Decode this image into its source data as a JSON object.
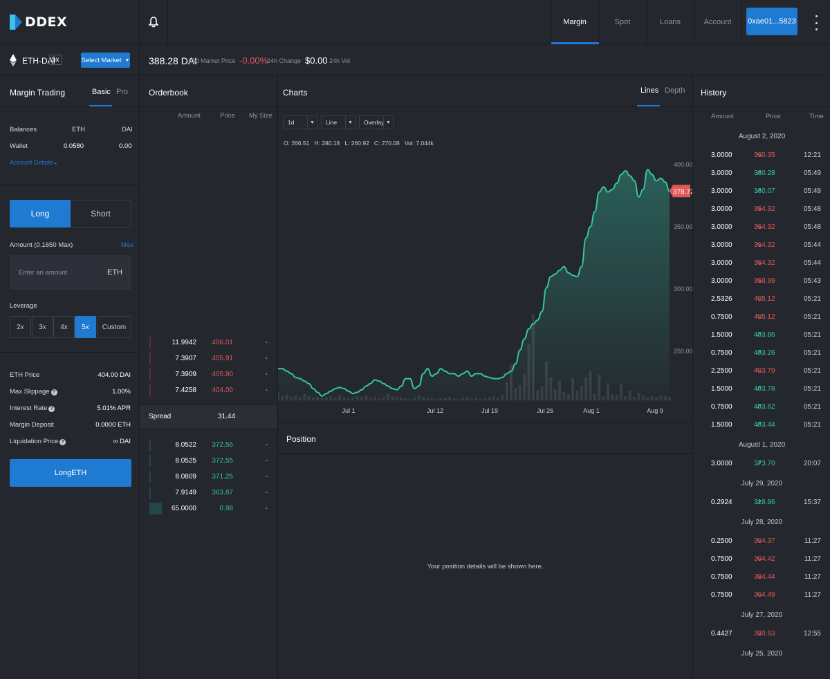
{
  "brand": {
    "name": "DDEX",
    "accent": "#1f7ad1"
  },
  "nav": {
    "tabs": [
      {
        "label": "Margin",
        "active": true
      },
      {
        "label": "Spot"
      },
      {
        "label": "Loans"
      },
      {
        "label": "Account"
      }
    ],
    "account_button": "0xae01...5823",
    "bell_icon": "bell-icon",
    "menu_icon": "kebab-menu-icon"
  },
  "market": {
    "pair": "ETH-DAI",
    "leverage_badge": "5x",
    "select_market_label": "Select Market",
    "price": "388.28 DAI",
    "price_label": "Mid Market Price",
    "change": "-0.00%",
    "change_label": "24h Change",
    "volume": "$0.00",
    "volume_label": "24h Vol"
  },
  "trade": {
    "title": "Margin Trading",
    "mode_tabs": [
      "Basic",
      "Pro"
    ],
    "balances_label": "Balances",
    "col_eth": "ETH",
    "col_dai": "DAI",
    "wallet_label": "Wallet",
    "wallet_eth": "0.0580",
    "wallet_dai": "0.00",
    "account_details": "Account Details",
    "side_long": "Long",
    "side_short": "Short",
    "amount_label": "Amount (0.1650 Max)",
    "max_label": "Max",
    "amount_placeholder": "Enter an amount",
    "amount_unit": "ETH",
    "leverage_label": "Leverage",
    "leverage_options": [
      "2x",
      "3x",
      "4x",
      "5x",
      "Custom"
    ],
    "leverage_selected": "5x",
    "stats": [
      {
        "label": "ETH Price",
        "value": "404.00 DAI",
        "help": false
      },
      {
        "label": "Max Slippage",
        "value": "1.00%",
        "help": true
      },
      {
        "label": "Interest Rate",
        "value": "5.01% APR",
        "help": true
      },
      {
        "label": "Margin Deposit",
        "value": "0.0000 ETH",
        "help": false
      },
      {
        "label": "Liquidation Price",
        "value": "∞ DAI",
        "help": true
      }
    ],
    "submit_label": "LongETH"
  },
  "orderbook": {
    "title": "Orderbook",
    "headers": [
      "Amount",
      "Price",
      "My Size"
    ],
    "asks": [
      {
        "amount": "11.9942",
        "price": "406.01",
        "my_size": "-"
      },
      {
        "amount": "7.3907",
        "price": "405.91",
        "my_size": "-"
      },
      {
        "amount": "7.3909",
        "price": "405.90",
        "my_size": "-"
      },
      {
        "amount": "7.4258",
        "price": "404.00",
        "my_size": "-"
      }
    ],
    "spread_label": "Spread",
    "spread_value": "31.44",
    "bids": [
      {
        "amount": "8.0522",
        "price": "372.56",
        "my_size": "-"
      },
      {
        "amount": "8.0525",
        "price": "372.55",
        "my_size": "-"
      },
      {
        "amount": "8.0809",
        "price": "371.25",
        "my_size": "-"
      },
      {
        "amount": "7.9149",
        "price": "363.87",
        "my_size": "-"
      },
      {
        "amount": "65.0000",
        "price": "0.98",
        "my_size": "-"
      }
    ]
  },
  "charts": {
    "title": "Charts",
    "view_tabs": [
      "Lines",
      "Depth"
    ],
    "interval": "1d",
    "chart_style": "Line",
    "overlay": "Overlay",
    "ohlc": "O: 266.51   H: 280.18   L: 260.92   C: 270.08   Vol: 7.044k",
    "last_price_tag": "378.72"
  },
  "chart_data": {
    "type": "area",
    "x_labels": [
      "Jul 1",
      "Jul 12",
      "Jul 19",
      "Jul 26",
      "Aug 1",
      "Aug 9"
    ],
    "y_ticks": [
      "400.00",
      "350.00",
      "300.00",
      "250.00"
    ],
    "ylim": [
      210,
      410
    ],
    "series": [
      {
        "values": [
          236,
          236,
          234,
          232,
          229,
          228,
          226,
          224,
          220,
          217,
          214,
          216,
          218,
          220,
          221,
          220,
          218,
          216,
          217,
          219,
          222,
          224,
          227,
          226,
          224,
          222,
          220,
          219,
          222,
          228,
          228,
          220,
          222,
          232,
          236,
          230,
          232,
          236,
          234,
          232,
          232,
          230,
          232,
          234,
          230,
          232,
          232,
          230,
          229,
          228,
          228,
          229,
          232,
          234,
          240,
          251,
          260,
          268,
          272,
          275,
          282,
          301,
          310,
          312,
          315,
          318,
          313,
          311,
          310,
          318,
          341,
          350,
          362,
          378,
          382,
          378,
          380,
          385,
          392,
          395,
          391,
          387,
          374,
          380,
          396,
          392,
          387,
          389,
          386,
          378.72
        ]
      }
    ],
    "volume": [
      1.2,
      0.6,
      0.8,
      0.5,
      0.7,
      0.5,
      0.9,
      0.6,
      0.4,
      0.5,
      0.3,
      0.5,
      0.6,
      0.4,
      0.8,
      0.5,
      0.3,
      0.4,
      0.6,
      0.5,
      0.7,
      0.4,
      0.5,
      0.3,
      0.4,
      1.0,
      0.6,
      0.5,
      0.4,
      0.3,
      0.2,
      0.4,
      0.7,
      0.5,
      0.3,
      0.4,
      0.2,
      0.3,
      0.4,
      0.5,
      0.3,
      0.2,
      0.4,
      0.5,
      0.3,
      0.4,
      0.2,
      0.3,
      0.5,
      0.6,
      0.4,
      0.8,
      2.6,
      5.2,
      1.8,
      2.2,
      3.8,
      8.2,
      12.5,
      1.5,
      2.0,
      5.6,
      3.4,
      1.6,
      2.8,
      1.2,
      0.9,
      3.2,
      1.4,
      2.1,
      3.4,
      4.2,
      1.0,
      3.7,
      0.6,
      2.5,
      0.9,
      0.8,
      2.4,
      0.6,
      1.4,
      0.5,
      1.1,
      0.7,
      0.4,
      0.6,
      0.5,
      0.7,
      0.6,
      0.5
    ]
  },
  "position": {
    "title": "Position",
    "empty_message": "Your position details will be shown here."
  },
  "history": {
    "title": "History",
    "headers": [
      "Amount",
      "Price",
      "Time"
    ],
    "groups": [
      {
        "date": "August 2, 2020",
        "trades": [
          {
            "amount": "3.0000",
            "price": "360.35",
            "dir": "down",
            "time": "12:21"
          },
          {
            "amount": "3.0000",
            "price": "360.28",
            "dir": "up",
            "time": "05:49"
          },
          {
            "amount": "3.0000",
            "price": "360.07",
            "dir": "up",
            "time": "05:49"
          },
          {
            "amount": "3.0000",
            "price": "364.32",
            "dir": "down",
            "time": "05:48"
          },
          {
            "amount": "3.0000",
            "price": "364.32",
            "dir": "down",
            "time": "05:48"
          },
          {
            "amount": "3.0000",
            "price": "364.32",
            "dir": "down",
            "time": "05:44"
          },
          {
            "amount": "3.0000",
            "price": "364.32",
            "dir": "down",
            "time": "05:44"
          },
          {
            "amount": "3.0000",
            "price": "368.99",
            "dir": "down",
            "time": "05:43"
          },
          {
            "amount": "2.5326",
            "price": "405.12",
            "dir": "down",
            "time": "05:21"
          },
          {
            "amount": "0.7500",
            "price": "405.12",
            "dir": "down",
            "time": "05:21"
          },
          {
            "amount": "1.5000",
            "price": "403.86",
            "dir": "up",
            "time": "05:21"
          },
          {
            "amount": "0.7500",
            "price": "403.26",
            "dir": "up",
            "time": "05:21"
          },
          {
            "amount": "2.2500",
            "price": "403.79",
            "dir": "down",
            "time": "05:21"
          },
          {
            "amount": "1.5000",
            "price": "403.78",
            "dir": "up",
            "time": "05:21"
          },
          {
            "amount": "0.7500",
            "price": "403.62",
            "dir": "up",
            "time": "05:21"
          },
          {
            "amount": "1.5000",
            "price": "403.44",
            "dir": "up",
            "time": "05:21"
          }
        ]
      },
      {
        "date": "August 1, 2020",
        "trades": [
          {
            "amount": "3.0000",
            "price": "373.70",
            "dir": "up",
            "time": "20:07"
          }
        ]
      },
      {
        "date": "July 29, 2020",
        "trades": [
          {
            "amount": "0.2924",
            "price": "318.86",
            "dir": "up",
            "time": "15:37"
          }
        ]
      },
      {
        "date": "July 28, 2020",
        "trades": [
          {
            "amount": "0.2500",
            "price": "304.37",
            "dir": "down",
            "time": "11:27"
          },
          {
            "amount": "0.7500",
            "price": "304.42",
            "dir": "down",
            "time": "11:27"
          },
          {
            "amount": "0.7500",
            "price": "304.44",
            "dir": "down",
            "time": "11:27"
          },
          {
            "amount": "0.7500",
            "price": "304.49",
            "dir": "down",
            "time": "11:27"
          }
        ]
      },
      {
        "date": "July 27, 2020",
        "trades": [
          {
            "amount": "0.4427",
            "price": "320.93",
            "dir": "down",
            "time": "12:55"
          }
        ]
      },
      {
        "date": "July 25, 2020",
        "trades": []
      }
    ]
  },
  "colors": {
    "up": "#35c6a4",
    "down": "#e25858",
    "background": "#24272e",
    "border": "#17191d"
  }
}
